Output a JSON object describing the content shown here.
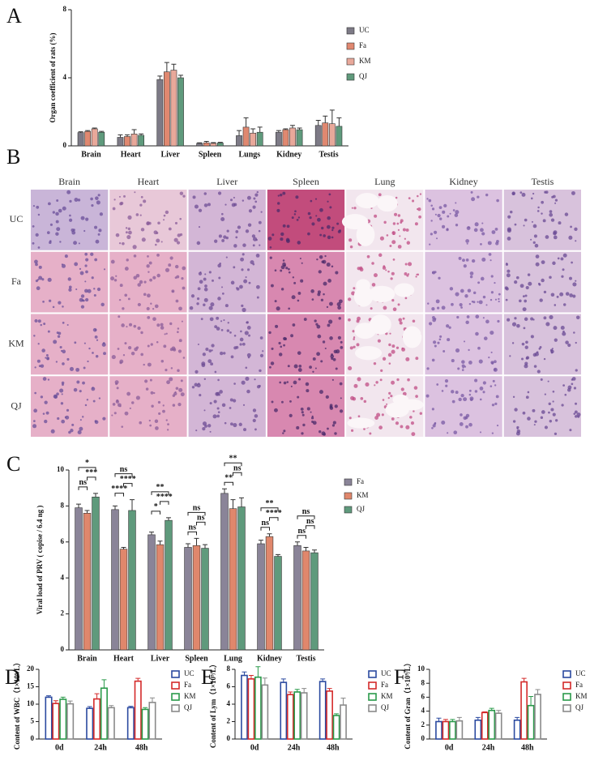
{
  "chart_data": [
    {
      "type": "bar",
      "panel": "A",
      "ylabel": "Organ coefficient of rats (%)",
      "categories": [
        "Brain",
        "Heart",
        "Liver",
        "Spleen",
        "Lungs",
        "Kidney",
        "Testis"
      ],
      "series": [
        {
          "name": "UC",
          "color": "#7d7a86",
          "values": [
            0.78,
            0.5,
            3.9,
            0.15,
            0.6,
            0.8,
            1.2
          ],
          "errors": [
            0.05,
            0.15,
            0.2,
            0.03,
            0.3,
            0.1,
            0.3
          ]
        },
        {
          "name": "Fa",
          "color": "#e08870",
          "values": [
            0.85,
            0.55,
            4.35,
            0.18,
            1.1,
            0.95,
            1.35
          ],
          "errors": [
            0.05,
            0.1,
            0.55,
            0.08,
            0.55,
            0.05,
            0.4
          ]
        },
        {
          "name": "KM",
          "color": "#e8a89a",
          "values": [
            1.0,
            0.7,
            4.45,
            0.15,
            0.75,
            1.05,
            1.3
          ],
          "errors": [
            0.05,
            0.25,
            0.35,
            0.04,
            0.25,
            0.15,
            0.8
          ]
        },
        {
          "name": "QJ",
          "color": "#5f9a7c",
          "values": [
            0.8,
            0.62,
            4.0,
            0.17,
            0.8,
            0.95,
            1.15
          ],
          "errors": [
            0.05,
            0.08,
            0.15,
            0.04,
            0.3,
            0.1,
            0.5
          ]
        }
      ],
      "ylim": [
        0,
        8
      ],
      "yticks": [
        0,
        4,
        8
      ],
      "bar_style": "filled",
      "legend": "right"
    },
    {
      "type": "bar",
      "panel": "C",
      "ylabel": "Viral load of PRV ( copise / 6.4 ng )",
      "categories": [
        "Brain",
        "Heart",
        "Liver",
        "Spleen",
        "Lung",
        "Kidney",
        "Testis"
      ],
      "series": [
        {
          "name": "Fa",
          "color": "#8a8498",
          "values": [
            7.9,
            7.8,
            6.4,
            5.7,
            8.7,
            5.9,
            5.8
          ],
          "errors": [
            0.2,
            0.2,
            0.15,
            0.2,
            0.25,
            0.2,
            0.2
          ]
        },
        {
          "name": "KM",
          "color": "#e0876c",
          "values": [
            7.6,
            5.6,
            5.85,
            5.8,
            7.85,
            6.3,
            5.5
          ],
          "errors": [
            0.15,
            0.1,
            0.2,
            0.4,
            0.5,
            0.15,
            0.2
          ]
        },
        {
          "name": "QJ",
          "color": "#5f9a7c",
          "values": [
            8.5,
            7.75,
            7.2,
            5.65,
            7.95,
            5.2,
            5.4
          ],
          "errors": [
            0.2,
            0.6,
            0.15,
            0.2,
            0.5,
            0.1,
            0.15
          ]
        }
      ],
      "ylim": [
        0,
        10
      ],
      "yticks": [
        0,
        2,
        4,
        6,
        8,
        10
      ],
      "bar_style": "filled",
      "legend": "right",
      "annotations": [
        {
          "category": "Brain",
          "between": [
            "Fa",
            "KM"
          ],
          "text": "ns"
        },
        {
          "category": "Brain",
          "between": [
            "KM",
            "QJ"
          ],
          "text": "***"
        },
        {
          "category": "Brain",
          "between": [
            "Fa",
            "QJ"
          ],
          "text": "*"
        },
        {
          "category": "Heart",
          "between": [
            "Fa",
            "KM"
          ],
          "text": "****"
        },
        {
          "category": "Heart",
          "between": [
            "KM",
            "QJ"
          ],
          "text": "****"
        },
        {
          "category": "Heart",
          "between": [
            "Fa",
            "QJ"
          ],
          "text": "ns"
        },
        {
          "category": "Liver",
          "between": [
            "Fa",
            "KM"
          ],
          "text": "*"
        },
        {
          "category": "Liver",
          "between": [
            "KM",
            "QJ"
          ],
          "text": "****"
        },
        {
          "category": "Liver",
          "between": [
            "Fa",
            "QJ"
          ],
          "text": "**"
        },
        {
          "category": "Spleen",
          "between": [
            "Fa",
            "KM"
          ],
          "text": "ns"
        },
        {
          "category": "Spleen",
          "between": [
            "KM",
            "QJ"
          ],
          "text": "ns"
        },
        {
          "category": "Spleen",
          "between": [
            "Fa",
            "QJ"
          ],
          "text": "ns"
        },
        {
          "category": "Lung",
          "between": [
            "Fa",
            "KM"
          ],
          "text": "**"
        },
        {
          "category": "Lung",
          "between": [
            "KM",
            "QJ"
          ],
          "text": "ns"
        },
        {
          "category": "Lung",
          "between": [
            "Fa",
            "QJ"
          ],
          "text": "**"
        },
        {
          "category": "Kidney",
          "between": [
            "Fa",
            "KM"
          ],
          "text": "ns"
        },
        {
          "category": "Kidney",
          "between": [
            "KM",
            "QJ"
          ],
          "text": "****"
        },
        {
          "category": "Kidney",
          "between": [
            "Fa",
            "QJ"
          ],
          "text": "**"
        },
        {
          "category": "Testis",
          "between": [
            "Fa",
            "KM"
          ],
          "text": "ns"
        },
        {
          "category": "Testis",
          "between": [
            "KM",
            "QJ"
          ],
          "text": "ns"
        },
        {
          "category": "Testis",
          "between": [
            "Fa",
            "QJ"
          ],
          "text": "ns"
        }
      ]
    },
    {
      "type": "bar",
      "panel": "D",
      "ylabel": "Content of WBC（1×10⁹/L）",
      "categories": [
        "0d",
        "24h",
        "48h"
      ],
      "series": [
        {
          "name": "UC",
          "color": "#2b4aa0",
          "values": [
            12,
            8.8,
            9
          ],
          "errors": [
            0.4,
            0.5,
            0.4
          ]
        },
        {
          "name": "Fa",
          "color": "#d42a2a",
          "values": [
            10.2,
            11.5,
            16.6
          ],
          "errors": [
            0.8,
            1.5,
            0.8
          ]
        },
        {
          "name": "KM",
          "color": "#2a9a4a",
          "values": [
            11.4,
            14.6,
            8.5
          ],
          "errors": [
            0.6,
            2.4,
            0.5
          ]
        },
        {
          "name": "QJ",
          "color": "#8a8a8a",
          "values": [
            10.1,
            9,
            10.5
          ],
          "errors": [
            0.8,
            0.6,
            1.3
          ]
        }
      ],
      "ylim": [
        0,
        20
      ],
      "yticks": [
        0,
        5,
        10,
        15,
        20
      ],
      "bar_style": "outline",
      "legend": "right"
    },
    {
      "type": "bar",
      "panel": "E",
      "ylabel": "Content of Lym（1×10⁹/L）",
      "categories": [
        "0d",
        "24h",
        "48h"
      ],
      "series": [
        {
          "name": "UC",
          "color": "#2b4aa0",
          "values": [
            7.3,
            6.5,
            6.6
          ],
          "errors": [
            0.4,
            0.4,
            0.3
          ]
        },
        {
          "name": "Fa",
          "color": "#d42a2a",
          "values": [
            6.9,
            5.1,
            5.5
          ],
          "errors": [
            0.4,
            0.3,
            0.3
          ]
        },
        {
          "name": "KM",
          "color": "#2a9a4a",
          "values": [
            7.1,
            5.4,
            2.7
          ],
          "errors": [
            1.2,
            0.3,
            0.2
          ]
        },
        {
          "name": "QJ",
          "color": "#8a8a8a",
          "values": [
            6.2,
            5.3,
            3.9
          ],
          "errors": [
            0.8,
            0.5,
            0.8
          ]
        }
      ],
      "ylim": [
        0,
        8
      ],
      "yticks": [
        0,
        2,
        4,
        6,
        8
      ],
      "bar_style": "outline",
      "legend": "right"
    },
    {
      "type": "bar",
      "panel": "F",
      "ylabel": "Content of Gran（1×10⁹/L）",
      "categories": [
        "0d",
        "24h",
        "48h"
      ],
      "series": [
        {
          "name": "UC",
          "color": "#2b4aa0",
          "values": [
            2.5,
            2.7,
            2.7
          ],
          "errors": [
            0.5,
            0.4,
            0.4
          ]
        },
        {
          "name": "Fa",
          "color": "#d42a2a",
          "values": [
            2.5,
            3.8,
            8.2
          ],
          "errors": [
            0.3,
            0.1,
            0.5
          ]
        },
        {
          "name": "KM",
          "color": "#2a9a4a",
          "values": [
            2.5,
            4.1,
            4.8
          ],
          "errors": [
            0.3,
            0.3,
            1.3
          ]
        },
        {
          "name": "QJ",
          "color": "#8a8a8a",
          "values": [
            2.6,
            3.7,
            6.4
          ],
          "errors": [
            0.5,
            0.4,
            0.7
          ]
        }
      ],
      "ylim": [
        0,
        10
      ],
      "yticks": [
        0,
        2,
        4,
        6,
        8,
        10
      ],
      "bar_style": "outline",
      "legend": "right"
    }
  ],
  "histology": {
    "panel": "B",
    "columns": [
      "Brain",
      "Heart",
      "Liver",
      "Spleen",
      "Lung",
      "Kidney",
      "Testis"
    ],
    "rows": [
      "UC",
      "Fa",
      "KM",
      "QJ"
    ]
  }
}
